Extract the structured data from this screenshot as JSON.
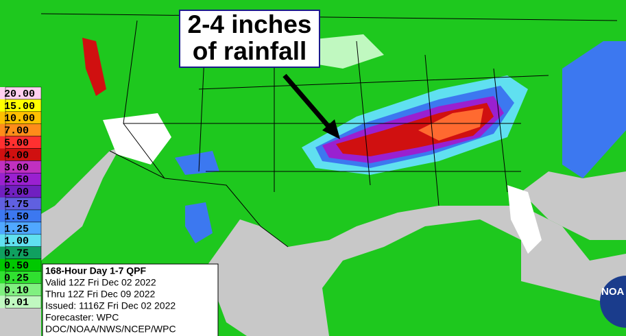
{
  "annotation": {
    "lines": [
      "2-4 inches",
      "of rainfall"
    ]
  },
  "legend": {
    "items": [
      {
        "label": "20.00",
        "color": "#ffd0f0"
      },
      {
        "label": "15.00",
        "color": "#ffff00"
      },
      {
        "label": "10.00",
        "color": "#ffc000"
      },
      {
        "label": "7.00",
        "color": "#ff8c1a"
      },
      {
        "label": "5.00",
        "color": "#ff3030"
      },
      {
        "label": "4.00",
        "color": "#d01010"
      },
      {
        "label": "3.00",
        "color": "#c030c0"
      },
      {
        "label": "2.50",
        "color": "#9a20d0"
      },
      {
        "label": "2.00",
        "color": "#7020c0"
      },
      {
        "label": "1.75",
        "color": "#6060e0"
      },
      {
        "label": "1.50",
        "color": "#3c78f0"
      },
      {
        "label": "1.25",
        "color": "#50a8ff"
      },
      {
        "label": "1.00",
        "color": "#60e0f0"
      },
      {
        "label": "0.75",
        "color": "#10a060"
      },
      {
        "label": "0.50",
        "color": "#00c800"
      },
      {
        "label": "0.25",
        "color": "#30e030"
      },
      {
        "label": "0.10",
        "color": "#80f080"
      },
      {
        "label": "0.01",
        "color": "#c0f8c0"
      }
    ]
  },
  "info": {
    "lines": [
      "168-Hour Day 1-7 QPF",
      "Valid 12Z Fri Dec 02 2022",
      "Thru 12Z Fri Dec 09 2022",
      "Issued: 1116Z Fri Dec 02 2022",
      "Forecaster: WPC",
      "DOC/NOAA/NWS/NCEP/WPC"
    ]
  },
  "logo": {
    "text": "NOA"
  }
}
